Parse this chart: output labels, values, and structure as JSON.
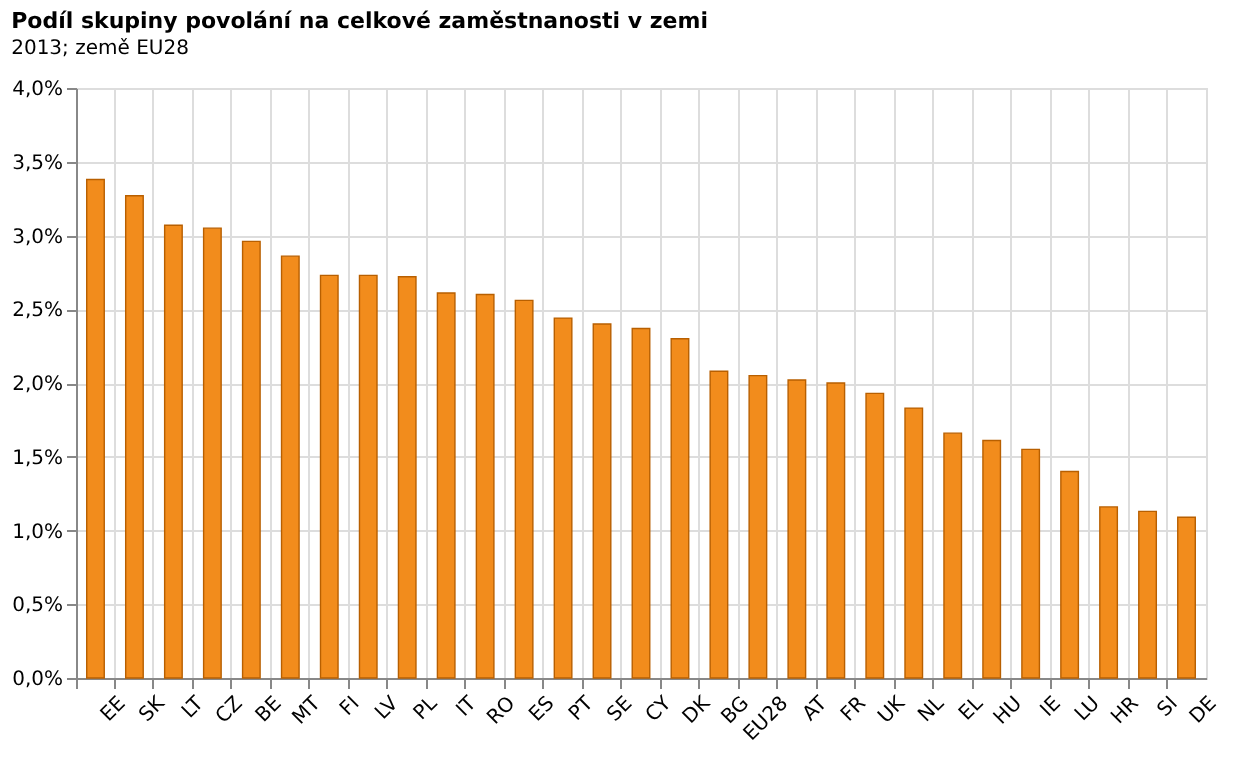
{
  "chart_data": {
    "type": "bar",
    "title": "Podíl skupiny povolání na celkové zaměstnanosti v zemi",
    "subtitle": "2013; země EU28",
    "categories": [
      "EE",
      "SK",
      "LT",
      "CZ",
      "BE",
      "MT",
      "FI",
      "LV",
      "PL",
      "IT",
      "RO",
      "ES",
      "PT",
      "SE",
      "CY",
      "DK",
      "BG",
      "EU28",
      "AT",
      "FR",
      "UK",
      "NL",
      "EL",
      "HU",
      "IE",
      "LU",
      "HR",
      "SI",
      "DE"
    ],
    "values": [
      3.38,
      3.27,
      3.07,
      3.05,
      2.96,
      2.86,
      2.73,
      2.73,
      2.72,
      2.61,
      2.6,
      2.56,
      2.44,
      2.4,
      2.37,
      2.3,
      2.08,
      2.05,
      2.02,
      2.0,
      1.93,
      1.83,
      1.66,
      1.61,
      1.55,
      1.4,
      1.16,
      1.13,
      1.09
    ],
    "color": "#f28c1c",
    "ylim": [
      0,
      4
    ],
    "yticks": [
      {
        "value": 0,
        "label": "0,0%"
      },
      {
        "value": 0.5,
        "label": "0,5%"
      },
      {
        "value": 1,
        "label": "1,0%"
      },
      {
        "value": 1.5,
        "label": "1,5%"
      },
      {
        "value": 2,
        "label": "2,0%"
      },
      {
        "value": 2.5,
        "label": "2,5%"
      },
      {
        "value": 3,
        "label": "3,0%"
      },
      {
        "value": 3.5,
        "label": "3,5%"
      },
      {
        "value": 4,
        "label": "4,0%"
      }
    ],
    "grid": true
  }
}
